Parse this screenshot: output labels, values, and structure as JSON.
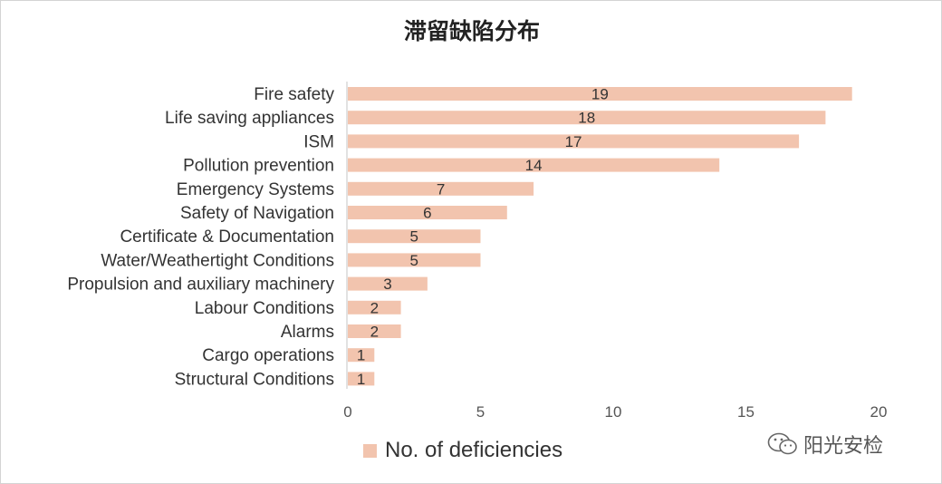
{
  "chart_data": {
    "type": "bar",
    "orientation": "horizontal",
    "title": "滞留缺陷分布",
    "categories": [
      "Fire safety",
      "Life saving appliances",
      "ISM",
      "Pollution prevention",
      "Emergency Systems",
      "Safety of Navigation",
      "Certificate & Documentation",
      "Water/Weathertight Conditions",
      "Propulsion and auxiliary machinery",
      "Labour Conditions",
      "Alarms",
      "Cargo operations",
      "Structural Conditions"
    ],
    "series": [
      {
        "name": "No. of deficiencies",
        "values": [
          19,
          18,
          17,
          14,
          7,
          6,
          5,
          5,
          3,
          2,
          2,
          1,
          1
        ]
      }
    ],
    "xlim": [
      0,
      20
    ],
    "xticks": [
      0,
      5,
      10,
      15,
      20
    ],
    "grid": false,
    "data_labels": true,
    "legend_position": "bottom",
    "colors": {
      "bar": "#f2c4ae",
      "axis": "#d9d9d9"
    }
  },
  "legend": {
    "label": "No. of deficiencies"
  },
  "watermark": {
    "text": "阳光安检",
    "icon": "wechat-icon"
  }
}
